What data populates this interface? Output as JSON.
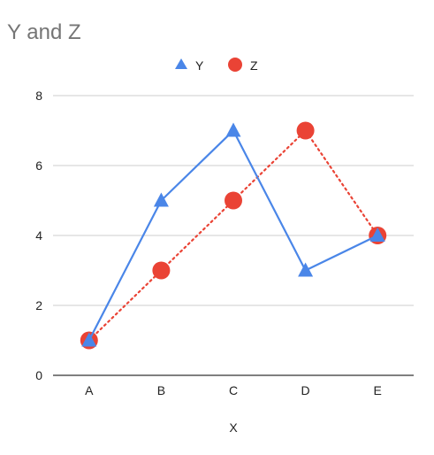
{
  "chart_data": {
    "type": "line",
    "title": "Y and Z",
    "xlabel": "X",
    "ylabel": "",
    "categories": [
      "A",
      "B",
      "C",
      "D",
      "E"
    ],
    "ylim": [
      0,
      8
    ],
    "yticks": [
      "0",
      "2",
      "4",
      "6",
      "8"
    ],
    "grid": true,
    "legend_position": "top",
    "series": [
      {
        "name": "Y",
        "values": [
          1,
          5,
          7,
          3,
          4
        ],
        "color": "#4a86e8",
        "marker": "triangle",
        "line": "solid"
      },
      {
        "name": "Z",
        "values": [
          1,
          3,
          5,
          7,
          4
        ],
        "color": "#ea4335",
        "marker": "circle",
        "line": "dotted"
      }
    ]
  }
}
